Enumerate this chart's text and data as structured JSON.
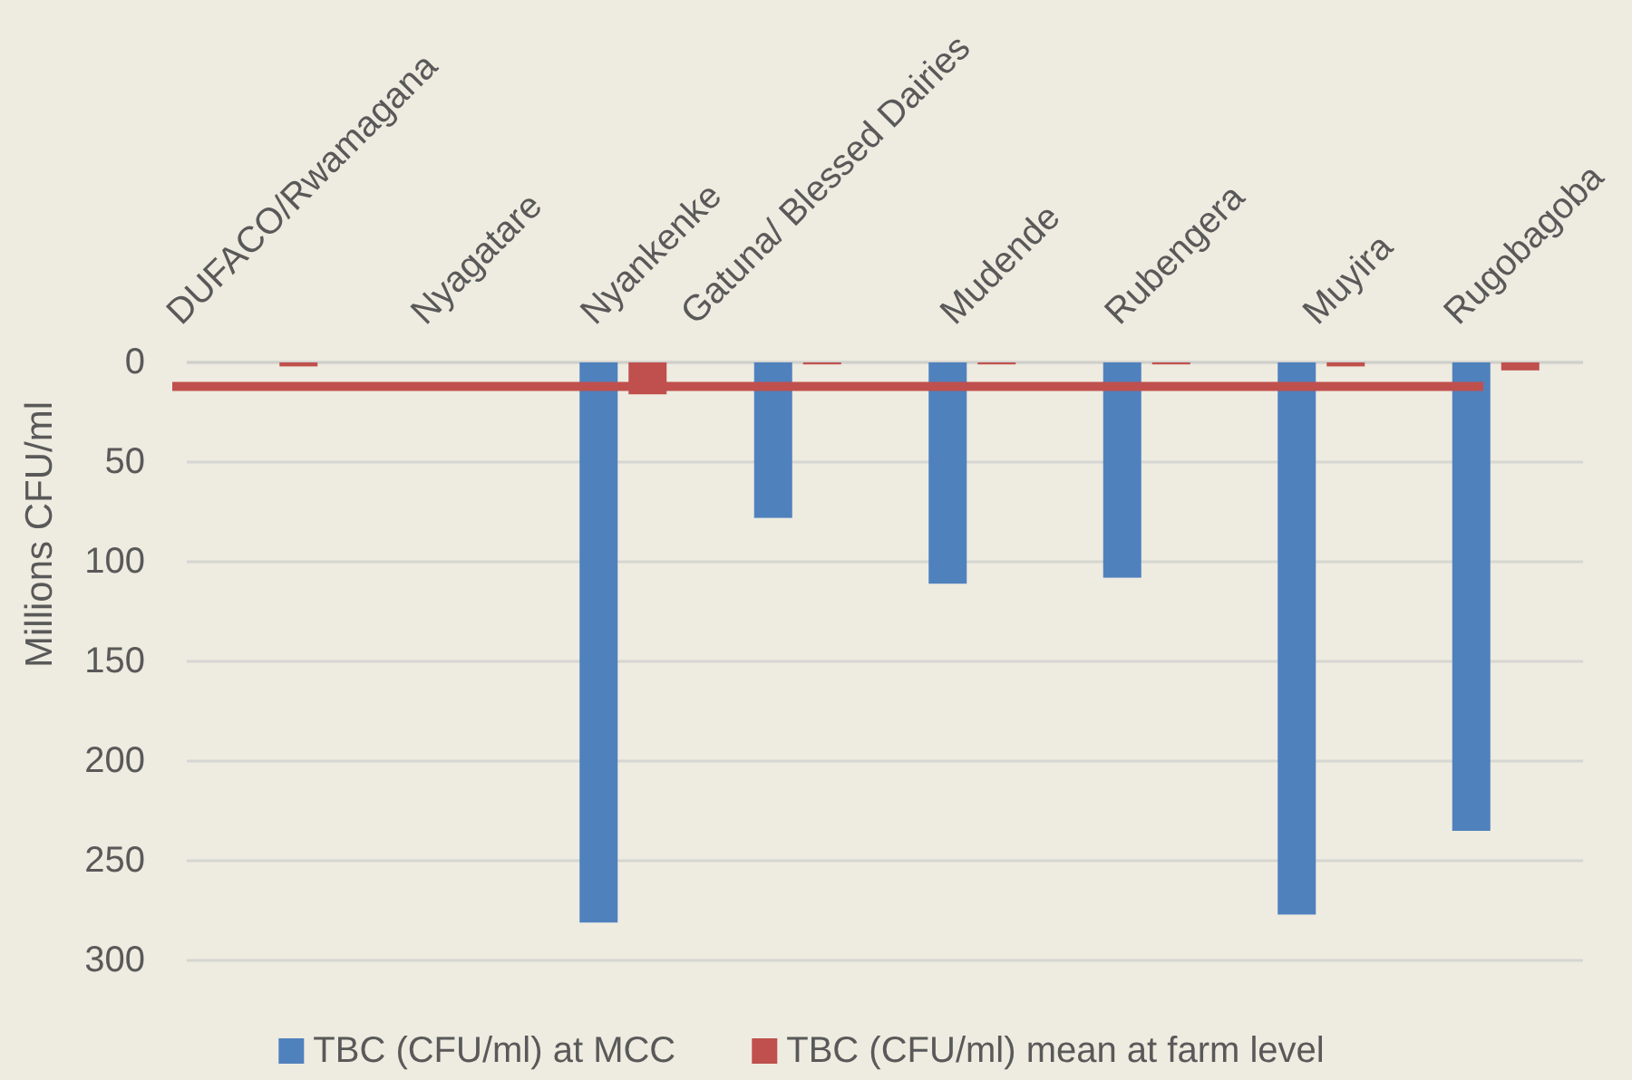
{
  "chart_data": {
    "type": "bar",
    "categories": [
      "DUFACO/Rwamagana",
      "Nyagatare",
      "Nyankenke",
      "Gatuna/ Blessed Dairies",
      "Mudende",
      "Rubengera",
      "Muyira",
      "Rugobagoba"
    ],
    "series": [
      {
        "name": "TBC (CFU/ml) at MCC",
        "color": "#4f81bd",
        "values": [
          null,
          null,
          281,
          78,
          111,
          108,
          277,
          235
        ]
      },
      {
        "name": "TBC (CFU/ml) mean at farm level",
        "color": "#c0504d",
        "values": [
          2,
          null,
          16,
          1,
          1,
          1,
          2,
          4
        ]
      }
    ],
    "ylabel": "Millions CFU/ml",
    "ylim": [
      300,
      0
    ],
    "yticks": [
      0,
      50,
      100,
      150,
      200,
      250,
      300
    ],
    "grid": "y",
    "legend": "bottom",
    "ref_lines": [
      {
        "axis": "y",
        "value": 12,
        "color": "#c0504d"
      }
    ]
  }
}
